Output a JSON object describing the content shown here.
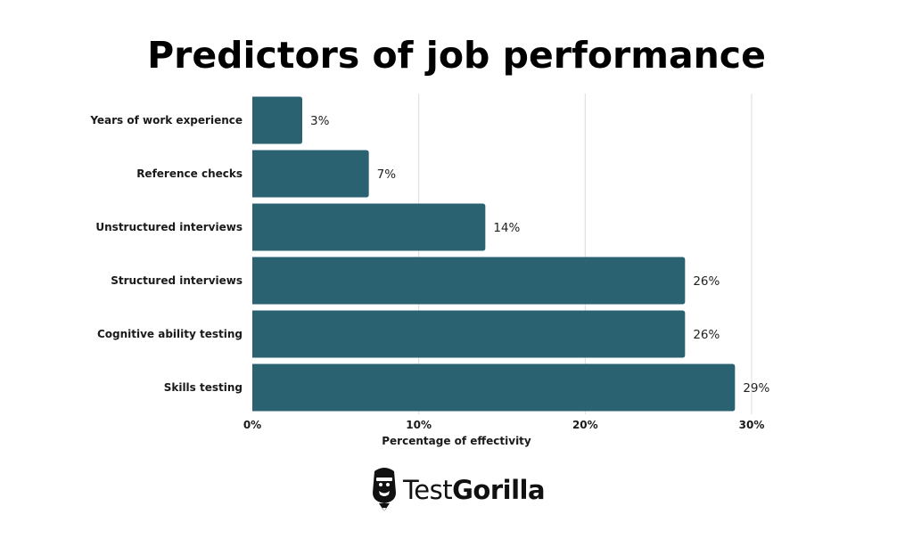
{
  "chart_data": {
    "type": "bar",
    "orientation": "horizontal",
    "title": "Predictors of job performance",
    "xlabel": "Percentage of effectivity",
    "ylabel": "",
    "categories": [
      "Years of work experience",
      "Reference checks",
      "Unstructured interviews",
      "Structured interviews",
      "Cognitive ability testing",
      "Skills testing"
    ],
    "values": [
      3,
      7,
      14,
      26,
      26,
      29
    ],
    "data_labels": [
      "3%",
      "7%",
      "14%",
      "26%",
      "26%",
      "29%"
    ],
    "xlim": [
      0,
      30
    ],
    "x_ticks": [
      0,
      10,
      20,
      30
    ],
    "x_tick_labels": [
      "0%",
      "10%",
      "20%",
      "30%"
    ],
    "grid": true,
    "bar_color": "#2a6272"
  },
  "brand": {
    "name_regular": "Test",
    "name_bold": "Gorilla",
    "logo_icon": "gorilla-head-icon"
  }
}
